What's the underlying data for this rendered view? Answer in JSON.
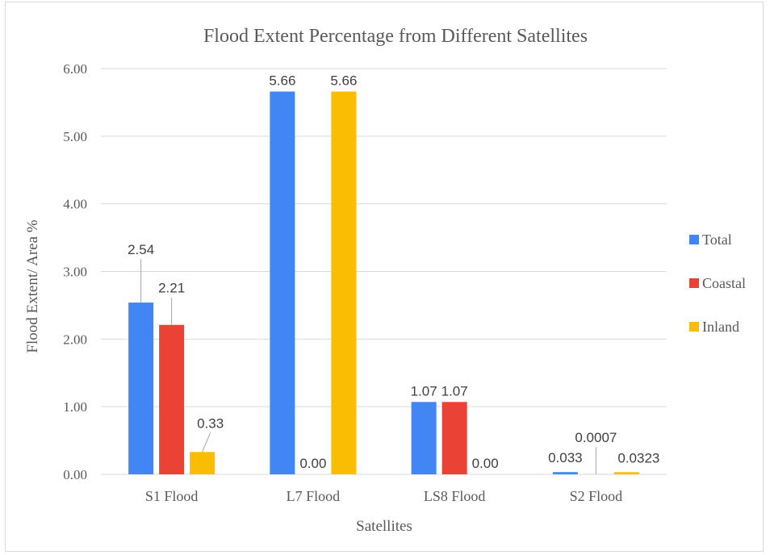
{
  "chart_data": {
    "type": "bar",
    "title": "Flood Extent Percentage from Different Satellites",
    "xlabel": "Satellites",
    "ylabel": "Flood Extent/ Area %",
    "categories": [
      "S1 Flood",
      "L7 Flood",
      "LS8 Flood",
      "S2 Flood"
    ],
    "series": [
      {
        "name": "Total",
        "color": "#4285F4",
        "values": [
          2.54,
          5.66,
          1.07,
          0.033
        ],
        "labels": [
          "2.54",
          "5.66",
          "1.07",
          "0.033"
        ]
      },
      {
        "name": "Coastal",
        "color": "#EA4335",
        "values": [
          2.21,
          0.0,
          1.07,
          0.0007
        ],
        "labels": [
          "2.21",
          "0.00",
          "1.07",
          "0.0007"
        ]
      },
      {
        "name": "Inland",
        "color": "#FBBC04",
        "values": [
          0.33,
          5.66,
          0.0,
          0.0323
        ],
        "labels": [
          "0.33",
          "5.66",
          "0.00",
          "0.0323"
        ]
      }
    ],
    "ylim": [
      0,
      6
    ],
    "yticks": [
      "0.00",
      "1.00",
      "2.00",
      "3.00",
      "4.00",
      "5.00",
      "6.00"
    ],
    "grid": true,
    "legend_position": "right"
  }
}
